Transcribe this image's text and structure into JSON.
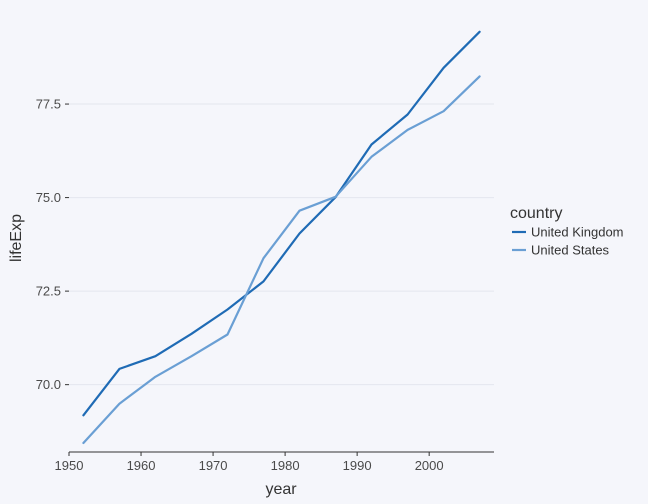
{
  "chart_data": {
    "type": "line",
    "title": "",
    "xlabel": "year",
    "ylabel": "lifeExp",
    "xlim": [
      1950,
      2009
    ],
    "ylim": [
      68.2,
      79.8
    ],
    "x_ticks": [
      1950,
      1960,
      1970,
      1980,
      1990,
      2000
    ],
    "y_ticks": [
      70.0,
      72.5,
      75.0,
      77.5
    ],
    "y_tick_labels": [
      "70.0",
      "72.5",
      "75.0",
      "77.5"
    ],
    "grid": "horizontal",
    "legend": {
      "title": "country",
      "placement": "right"
    },
    "series": [
      {
        "name": "United Kingdom",
        "color": "#1f6bb5",
        "x": [
          1952,
          1957,
          1962,
          1967,
          1972,
          1977,
          1982,
          1987,
          1992,
          1997,
          2002,
          2007
        ],
        "values": [
          69.18,
          70.42,
          70.76,
          71.36,
          72.01,
          72.76,
          74.04,
          75.01,
          76.42,
          77.22,
          78.47,
          79.43
        ]
      },
      {
        "name": "United States",
        "color": "#6a9fd4",
        "x": [
          1952,
          1957,
          1962,
          1967,
          1972,
          1977,
          1982,
          1987,
          1992,
          1997,
          2002,
          2007
        ],
        "values": [
          68.44,
          69.49,
          70.21,
          70.76,
          71.34,
          73.38,
          74.65,
          75.02,
          76.09,
          76.81,
          77.31,
          78.24
        ]
      }
    ]
  }
}
